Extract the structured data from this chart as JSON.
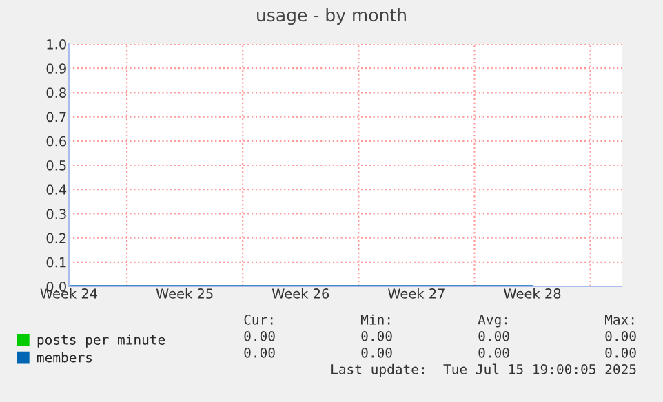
{
  "chart_data": {
    "type": "line",
    "title": "usage - by month",
    "categories": [
      "Week 24",
      "Week 25",
      "Week 26",
      "Week 27",
      "Week 28"
    ],
    "ylim": [
      0,
      1
    ],
    "yticks": [
      {
        "value": 0,
        "label": "0.0"
      },
      {
        "value": 0.1,
        "label": "0.1"
      },
      {
        "value": 0.2,
        "label": "0.2"
      },
      {
        "value": 0.3,
        "label": "0.3"
      },
      {
        "value": 0.4,
        "label": "0.4"
      },
      {
        "value": 0.5,
        "label": "0.5"
      },
      {
        "value": 0.6,
        "label": "0.6"
      },
      {
        "value": 0.7,
        "label": "0.7"
      },
      {
        "value": 0.8,
        "label": "0.8"
      },
      {
        "value": 0.9,
        "label": "0.9"
      },
      {
        "value": 1,
        "label": "1.0"
      }
    ],
    "grid": true,
    "legend": "bottom left",
    "series": [
      {
        "name": "posts per minute",
        "color": "#00cc00",
        "values": [
          null,
          null,
          null,
          null,
          null
        ]
      },
      {
        "name": "members",
        "color": "#0066b3",
        "values": [
          0,
          0,
          0,
          0,
          0
        ]
      }
    ],
    "annotations": [
      "Cur:",
      "Min:",
      "Avg:",
      "Max:",
      "0.00",
      "0.00",
      "0.00",
      "0.00",
      "0.00",
      "0.00",
      "0.00",
      "0.00",
      "Last update:  Tue Jul 15 19:00:05 2025"
    ]
  }
}
